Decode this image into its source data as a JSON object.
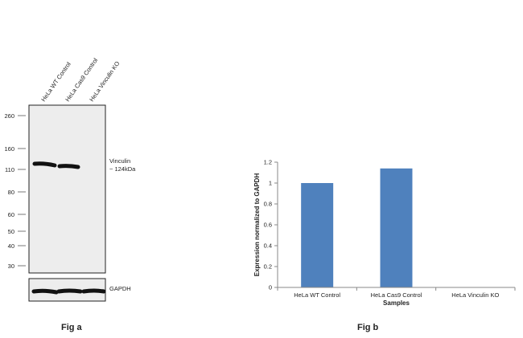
{
  "fig_a": {
    "caption": "Fig a",
    "lanes": [
      "HeLa WT Control",
      "HeLa Cas9 Control",
      "HeLa Vinculin KO"
    ],
    "mw_markers": [
      "260",
      "160",
      "110",
      "80",
      "60",
      "50",
      "40",
      "30"
    ],
    "target_label": [
      "Vinculin",
      "~ 124kDa"
    ],
    "loading_control_label": "GAPDH"
  },
  "fig_b": {
    "caption": "Fig b"
  },
  "chart_data": {
    "type": "bar",
    "categories": [
      "HeLa WT Control",
      "HeLa Cas9 Control",
      "HeLa Vinculin KO"
    ],
    "values": [
      1.0,
      1.14,
      0.0
    ],
    "xlabel": "Samples",
    "ylabel": "Expression normalized to GAPDH",
    "ylim": [
      0,
      1.2
    ],
    "yticks": [
      "0",
      "0.2",
      "0.4",
      "0.6",
      "0.8",
      "1",
      "1.2"
    ],
    "bar_color": "#4f81bd",
    "grid": false,
    "legend": "none"
  }
}
